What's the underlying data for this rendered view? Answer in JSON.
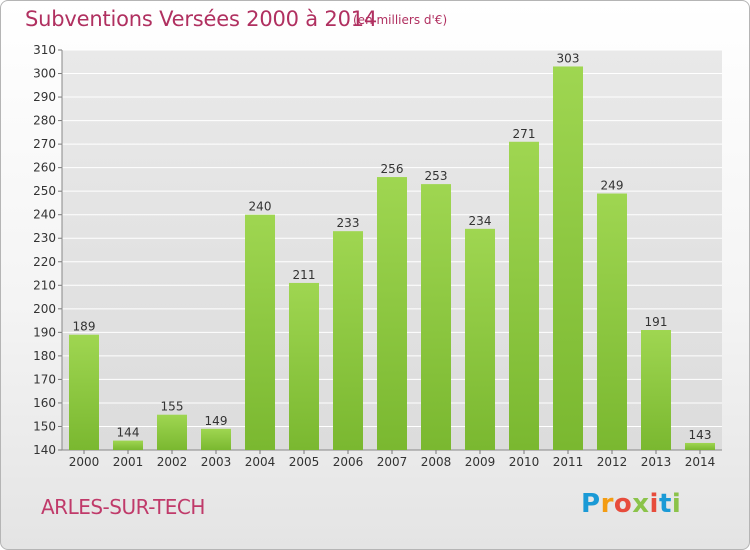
{
  "title": "Subventions Versées 2000 à 2014",
  "unit_note": "(en milliers d'€)",
  "commune": "ARLES-SUR-TECH",
  "logo": {
    "letters": [
      "P",
      "r",
      "o",
      "x",
      "i",
      "t",
      "i"
    ],
    "colors": [
      "#1a9ad6",
      "#f39c12",
      "#e74c3c",
      "#8bc34a",
      "#e74c3c",
      "#1a9ad6",
      "#8bc34a"
    ]
  },
  "chart_data": {
    "type": "bar",
    "categories": [
      "2000",
      "2001",
      "2002",
      "2003",
      "2004",
      "2005",
      "2006",
      "2007",
      "2008",
      "2009",
      "2010",
      "2011",
      "2012",
      "2013",
      "2014"
    ],
    "values": [
      189,
      144,
      155,
      149,
      240,
      211,
      233,
      256,
      253,
      234,
      271,
      303,
      249,
      191,
      143
    ],
    "ylim": [
      140,
      310
    ],
    "yticks": [
      140,
      150,
      160,
      170,
      180,
      190,
      200,
      210,
      220,
      230,
      240,
      250,
      260,
      270,
      280,
      290,
      300,
      310
    ],
    "grid": true,
    "bar_color": "#7ab830",
    "bar_color_light": "#9fd651"
  }
}
